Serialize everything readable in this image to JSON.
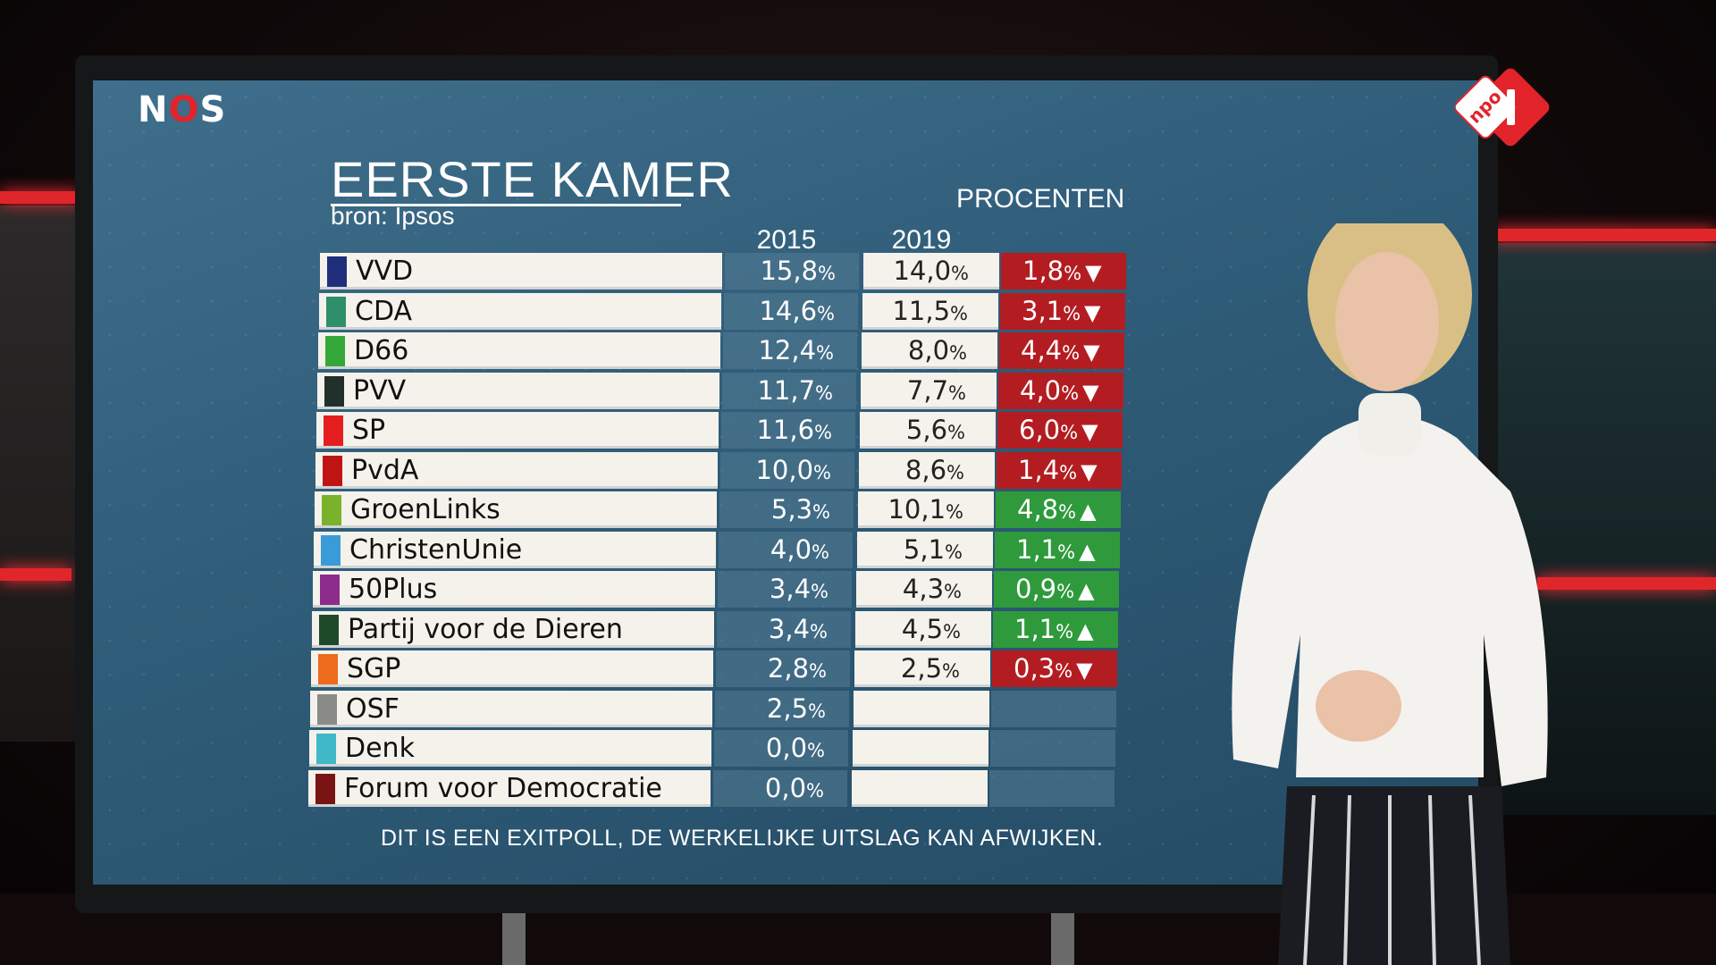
{
  "broadcaster_logo": "NOS",
  "channel_logo": {
    "text": "npo",
    "number": "1",
    "colors": {
      "primary": "#e3232a"
    }
  },
  "graphic": {
    "title": "EERSTE KAMER",
    "source": "bron: Ipsos",
    "unit_label": "PROCENTEN",
    "columns": {
      "y2015": "2015",
      "y2019": "2019"
    },
    "disclaimer": "DIT IS EEN EXITPOLL, DE WERKELIJKE UITSLAG KAN AFWIJKEN."
  },
  "parties": [
    {
      "name": "VVD",
      "color": "#1f2f7c",
      "v2015": "15,8",
      "v2019": "14,0",
      "change": "1,8",
      "direction": "down"
    },
    {
      "name": "CDA",
      "color": "#2f8f6a",
      "v2015": "14,6",
      "v2019": "11,5",
      "change": "3,1",
      "direction": "down"
    },
    {
      "name": "D66",
      "color": "#35a83a",
      "v2015": "12,4",
      "v2019": "8,0",
      "change": "4,4",
      "direction": "down"
    },
    {
      "name": "PVV",
      "color": "#22302c",
      "v2015": "11,7",
      "v2019": "7,7",
      "change": "4,0",
      "direction": "down"
    },
    {
      "name": "SP",
      "color": "#e41e1e",
      "v2015": "11,6",
      "v2019": "5,6",
      "change": "6,0",
      "direction": "down"
    },
    {
      "name": "PvdA",
      "color": "#c01414",
      "v2015": "10,0",
      "v2019": "8,6",
      "change": "1,4",
      "direction": "down"
    },
    {
      "name": "GroenLinks",
      "color": "#7ab32b",
      "v2015": "5,3",
      "v2019": "10,1",
      "change": "4,8",
      "direction": "up"
    },
    {
      "name": "ChristenUnie",
      "color": "#3a9bd9",
      "v2015": "4,0",
      "v2019": "5,1",
      "change": "1,1",
      "direction": "up"
    },
    {
      "name": "50Plus",
      "color": "#8e2c8c",
      "v2015": "3,4",
      "v2019": "4,3",
      "change": "0,9",
      "direction": "up"
    },
    {
      "name": "Partij voor de Dieren",
      "color": "#1f4a2a",
      "v2015": "3,4",
      "v2019": "4,5",
      "change": "1,1",
      "direction": "up"
    },
    {
      "name": "SGP",
      "color": "#ee6a1c",
      "v2015": "2,8",
      "v2019": "2,5",
      "change": "0,3",
      "direction": "down"
    },
    {
      "name": "OSF",
      "color": "#8a8a86",
      "v2015": "2,5",
      "v2019": "",
      "change": "",
      "direction": "none"
    },
    {
      "name": "Denk",
      "color": "#3fb8c8",
      "v2015": "0,0",
      "v2019": "",
      "change": "",
      "direction": "none"
    },
    {
      "name": "Forum voor Democratie",
      "color": "#7a1414",
      "v2015": "0,0",
      "v2019": "",
      "change": "",
      "direction": "none"
    }
  ],
  "percent_sign": "%",
  "arrows": {
    "up": "▲",
    "down": "▼"
  }
}
